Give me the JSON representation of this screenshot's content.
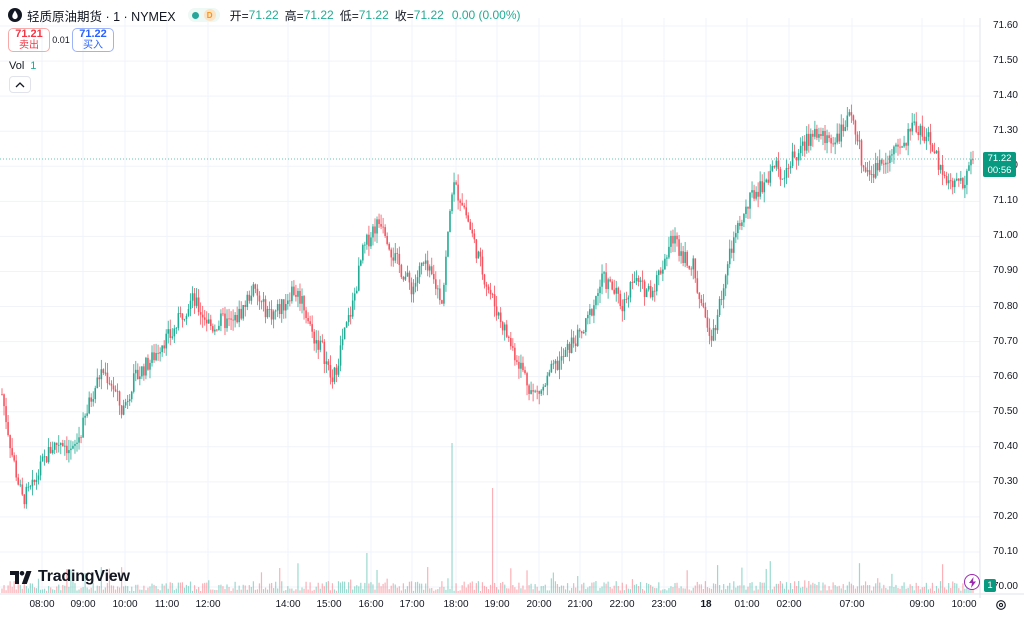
{
  "header": {
    "symbol": "轻质原油期货 · 1 · NYMEX",
    "badge": "D",
    "ohlc": [
      {
        "k": "开=",
        "v": "71.22"
      },
      {
        "k": "高=",
        "v": "71.22"
      },
      {
        "k": "低=",
        "v": "71.22"
      },
      {
        "k": "收=",
        "v": "71.22"
      }
    ],
    "change": "0.00 (0.00%)"
  },
  "trade": {
    "sell_price": "71.21",
    "sell_label": "卖出",
    "spread": "0.01",
    "buy_price": "71.22",
    "buy_label": "买入"
  },
  "volume_legend": {
    "label": "Vol",
    "value": "1"
  },
  "logo_text": "TradingView",
  "current_price": {
    "price": "71.22",
    "countdown": "00:56"
  },
  "volume_tag": "1",
  "colors": {
    "up": "#22ab94",
    "down": "#f7525f",
    "grid": "#f0f3fa"
  },
  "chart_data": {
    "type": "candlestick",
    "y_ticks": [
      "71.60",
      "71.50",
      "71.40",
      "71.30",
      "71.20",
      "71.10",
      "71.00",
      "70.90",
      "70.80",
      "70.70",
      "70.60",
      "70.50",
      "70.40",
      "70.30",
      "70.20",
      "70.10",
      "70.00"
    ],
    "ylim": [
      70.0,
      71.6
    ],
    "x_ticks": [
      "08:00",
      "09:00",
      "10:00",
      "11:00",
      "12:00",
      "14:00",
      "15:00",
      "16:00",
      "17:00",
      "18:00",
      "19:00",
      "20:00",
      "21:00",
      "22:00",
      "23:00",
      "18",
      "01:00",
      "02:00",
      "07:00",
      "09:00",
      "10:00"
    ],
    "price_path": [
      [
        0,
        70.55
      ],
      [
        1,
        70.38
      ],
      [
        2,
        70.25
      ],
      [
        3,
        70.28
      ],
      [
        4,
        70.35
      ],
      [
        5,
        70.4
      ],
      [
        6,
        70.42
      ],
      [
        7,
        70.38
      ],
      [
        8,
        70.45
      ],
      [
        9,
        70.55
      ],
      [
        10,
        70.62
      ],
      [
        11,
        70.58
      ],
      [
        12,
        70.5
      ],
      [
        13,
        70.58
      ],
      [
        14,
        70.62
      ],
      [
        15,
        70.65
      ],
      [
        16,
        70.7
      ],
      [
        17,
        70.72
      ],
      [
        18,
        70.78
      ],
      [
        19,
        70.82
      ],
      [
        20,
        70.78
      ],
      [
        21,
        70.74
      ],
      [
        22,
        70.76
      ],
      [
        23,
        70.75
      ],
      [
        24,
        70.79
      ],
      [
        25,
        70.85
      ],
      [
        26,
        70.8
      ],
      [
        27,
        70.78
      ],
      [
        28,
        70.8
      ],
      [
        29,
        70.85
      ],
      [
        30,
        70.82
      ],
      [
        31,
        70.72
      ],
      [
        32,
        70.68
      ],
      [
        33,
        70.58
      ],
      [
        34,
        70.7
      ],
      [
        35,
        70.8
      ],
      [
        36,
        70.95
      ],
      [
        37,
        71.02
      ],
      [
        38,
        71.05
      ],
      [
        39,
        70.95
      ],
      [
        40,
        70.9
      ],
      [
        41,
        70.85
      ],
      [
        42,
        70.92
      ],
      [
        43,
        70.88
      ],
      [
        44,
        70.82
      ],
      [
        45,
        71.15
      ],
      [
        46,
        71.1
      ],
      [
        47,
        71.0
      ],
      [
        48,
        70.9
      ],
      [
        49,
        70.82
      ],
      [
        50,
        70.75
      ],
      [
        51,
        70.68
      ],
      [
        52,
        70.62
      ],
      [
        53,
        70.55
      ],
      [
        54,
        70.56
      ],
      [
        55,
        70.62
      ],
      [
        56,
        70.65
      ],
      [
        57,
        70.7
      ],
      [
        58,
        70.72
      ],
      [
        59,
        70.8
      ],
      [
        60,
        70.88
      ],
      [
        61,
        70.85
      ],
      [
        62,
        70.8
      ],
      [
        63,
        70.88
      ],
      [
        64,
        70.85
      ],
      [
        65,
        70.85
      ],
      [
        66,
        70.92
      ],
      [
        67,
        71.0
      ],
      [
        68,
        70.95
      ],
      [
        69,
        70.92
      ],
      [
        70,
        70.78
      ],
      [
        71,
        70.72
      ],
      [
        72,
        70.85
      ],
      [
        73,
        70.98
      ],
      [
        74,
        71.05
      ],
      [
        75,
        71.12
      ],
      [
        76,
        71.15
      ],
      [
        77,
        71.2
      ],
      [
        78,
        71.18
      ],
      [
        79,
        71.22
      ],
      [
        80,
        71.25
      ],
      [
        81,
        71.3
      ],
      [
        82,
        71.28
      ],
      [
        83,
        71.28
      ],
      [
        84,
        71.3
      ],
      [
        85,
        71.35
      ],
      [
        86,
        71.2
      ],
      [
        87,
        71.18
      ],
      [
        88,
        71.22
      ],
      [
        89,
        71.24
      ],
      [
        90,
        71.25
      ],
      [
        91,
        71.32
      ],
      [
        92,
        71.3
      ],
      [
        93,
        71.25
      ],
      [
        94,
        71.18
      ],
      [
        95,
        71.15
      ],
      [
        96,
        71.16
      ],
      [
        97,
        71.22
      ]
    ]
  }
}
